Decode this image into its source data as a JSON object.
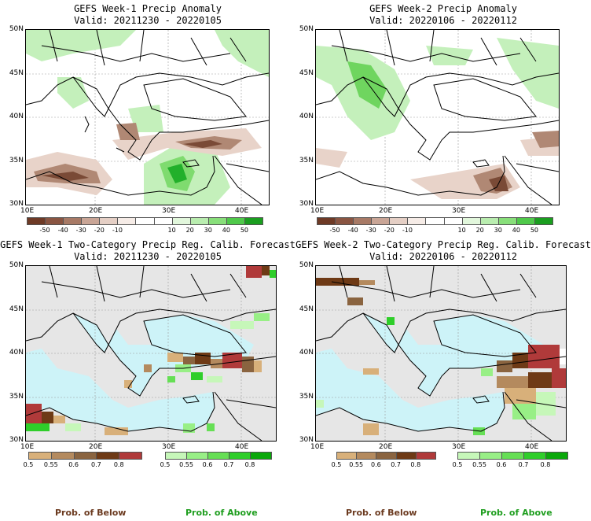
{
  "panels": [
    {
      "id": "p1",
      "title1": "GEFS Week-1 Precip Anomaly",
      "title2": "Valid: 20211230 - 20220105",
      "lat_labels": [
        "50N",
        "45N",
        "40N",
        "35N",
        "30N"
      ],
      "lon_labels": [
        "10E",
        "20E",
        "30E",
        "40E"
      ]
    },
    {
      "id": "p2",
      "title1": "GEFS Week-2 Precip Anomaly",
      "title2": "Valid: 20220106 - 20220112",
      "lat_labels": [
        "50N",
        "45N",
        "40N",
        "35N",
        "30N"
      ],
      "lon_labels": [
        "10E",
        "20E",
        "30E",
        "40E"
      ]
    },
    {
      "id": "p3",
      "title1": "GEFS Week-1 Two-Category Precip Reg. Calib. Forecast",
      "title2": "Valid: 20211230 - 20220105",
      "lat_labels": [
        "50N",
        "45N",
        "40N",
        "35N",
        "30N"
      ],
      "lon_labels": [
        "10E",
        "20E",
        "30E",
        "40E"
      ]
    },
    {
      "id": "p4",
      "title1": "GEFS Week-2 Two-Category Precip Reg. Calib. Forecast",
      "title2": "Valid: 20220106 - 20220112",
      "lat_labels": [
        "50N",
        "45N",
        "40N",
        "35N",
        "30N"
      ],
      "lon_labels": [
        "10E",
        "20E",
        "30E",
        "40E"
      ]
    }
  ],
  "anomaly_colorbar": {
    "ticks": [
      "-50",
      "-40",
      "-30",
      "-20",
      "-10",
      "10",
      "20",
      "30",
      "40",
      "50"
    ],
    "colors": [
      "#6e3a26",
      "#8a5542",
      "#a87a66",
      "#c9a596",
      "#e5cfc5",
      "#f6ece7",
      "#ffffff",
      "#ffffff",
      "#e2f7dc",
      "#b9edaf",
      "#88df7a",
      "#4fc94a",
      "#1a9e1f"
    ]
  },
  "prob_colorbar": {
    "below_ticks": [
      "0.5",
      "0.55",
      "0.6",
      "0.7",
      "0.8"
    ],
    "above_ticks": [
      "0.5",
      "0.55",
      "0.6",
      "0.7",
      "0.8"
    ],
    "below_colors": [
      "#d8b07a",
      "#b48a5e",
      "#8a6440",
      "#6e3a16",
      "#b03a3a"
    ],
    "above_colors": [
      "#c6f7b9",
      "#98ef86",
      "#66df55",
      "#2fce2a",
      "#0aa80a"
    ]
  },
  "legend": {
    "below": "Prob. of Below",
    "above": "Prob. of Above"
  },
  "colors": {
    "below_label": "#6b3a1f",
    "above_label": "#1f9e1f",
    "sea_prob": "#cdf3f8",
    "land_prob": "#e6e6e6"
  }
}
